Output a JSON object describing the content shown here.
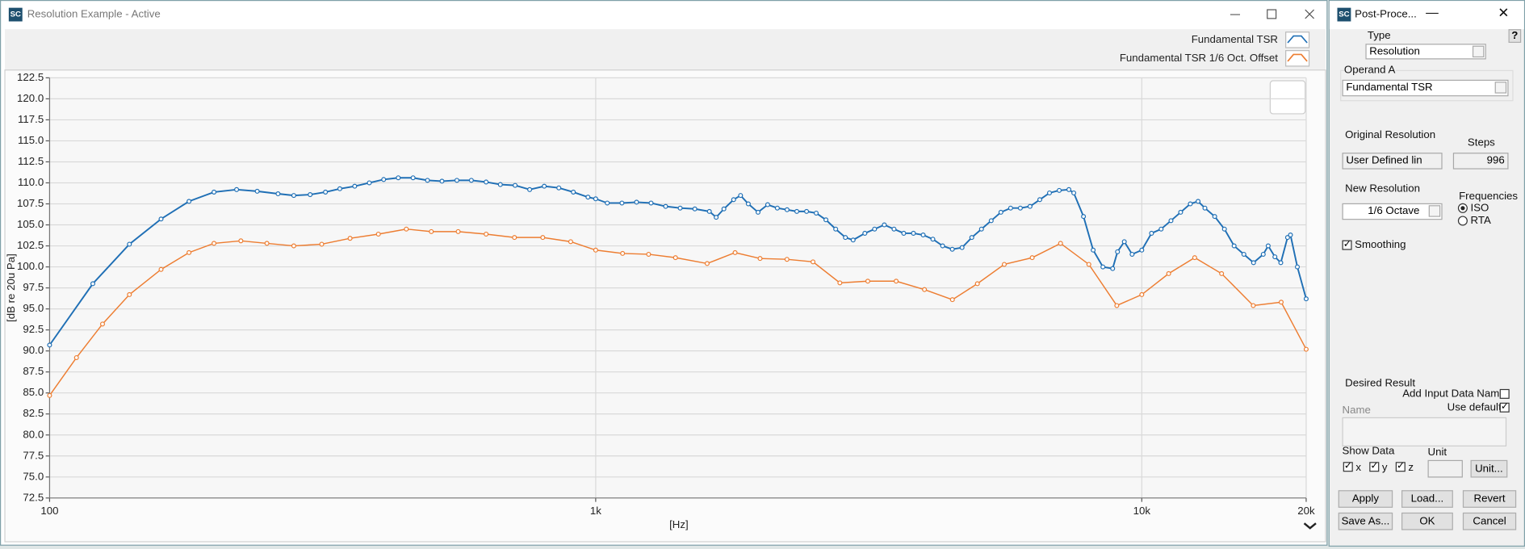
{
  "window": {
    "icon": "SC",
    "title": "Resolution Example - Active"
  },
  "chart_data": {
    "type": "line",
    "xscale": "log",
    "xlabel": "[Hz]",
    "ylabel": "[dB re 20u Pa]",
    "xlim": [
      100,
      20000
    ],
    "ylim": [
      72.5,
      122.5
    ],
    "xticks": [
      100,
      {
        "value": 1000,
        "label": "1k"
      },
      {
        "value": 10000,
        "label": "10k"
      },
      {
        "value": 20000,
        "label": "20k"
      }
    ],
    "yticks": [
      72.5,
      {
        "value": 75,
        "label": "75.0"
      },
      77.5,
      {
        "value": 80,
        "label": "80.0"
      },
      82.5,
      {
        "value": 85,
        "label": "85.0"
      },
      87.5,
      {
        "value": 90,
        "label": "90.0"
      },
      92.5,
      {
        "value": 95,
        "label": "95.0"
      },
      97.5,
      {
        "value": 100,
        "label": "100.0"
      },
      102.5,
      {
        "value": 105,
        "label": "105.0"
      },
      107.5,
      {
        "value": 110,
        "label": "110.0"
      },
      112.5,
      {
        "value": 115,
        "label": "115.0"
      },
      117.5,
      {
        "value": 120,
        "label": "120.0"
      },
      122.5
    ],
    "grid": true,
    "legend": "upper right",
    "series": [
      {
        "name": "Fundamental TSR",
        "color": "#1f6fb5",
        "x": [
          100,
          120,
          140,
          160,
          180,
          200,
          220,
          240,
          262,
          280,
          300,
          320,
          340,
          362,
          385,
          409,
          435,
          463,
          492,
          523,
          557,
          592,
          630,
          669,
          712,
          757,
          805,
          856,
          910,
          968,
          1000,
          1050,
          1117,
          1188,
          1263,
          1343,
          1428,
          1519,
          1615,
          1662,
          1717,
          1789,
          1842,
          1903,
          1983,
          2065,
          2151,
          2241,
          2335,
          2433,
          2534,
          2640,
          2751,
          2866,
          2961,
          3111,
          3241,
          3377,
          3518,
          3665,
          3818,
          3978,
          4144,
          4318,
          4498,
          4687,
          4883,
          5087,
          5300,
          5521,
          5752,
          5993,
          6243,
          6505,
          6776,
          7060,
          7354,
          7507,
          7821,
          8147,
          8488,
          8844,
          9027,
          9290,
          9600,
          10000,
          10420,
          10850,
          11310,
          11780,
          12270,
          12680,
          13050,
          13600,
          14170,
          14760,
          15380,
          16020,
          16690,
          17040,
          17530,
          17970,
          18490,
          18720,
          19270,
          20000
        ],
        "values": [
          90.7,
          98,
          102.7,
          105.7,
          107.8,
          108.9,
          109.2,
          109,
          108.7,
          108.5,
          108.6,
          108.9,
          109.3,
          109.6,
          110,
          110.4,
          110.6,
          110.6,
          110.3,
          110.2,
          110.3,
          110.3,
          110.1,
          109.8,
          109.7,
          109.2,
          109.6,
          109.4,
          108.9,
          108.3,
          108.1,
          107.6,
          107.6,
          107.7,
          107.6,
          107.2,
          107,
          106.9,
          106.6,
          105.9,
          106.9,
          108,
          108.5,
          107.5,
          106.5,
          107.4,
          107,
          106.8,
          106.6,
          106.6,
          106.4,
          105.6,
          104.5,
          103.5,
          103.2,
          104,
          104.5,
          105,
          104.5,
          104,
          104,
          103.8,
          103.3,
          102.5,
          102.1,
          102.3,
          103.5,
          104.5,
          105.5,
          106.5,
          107,
          107,
          107.2,
          108,
          108.8,
          109.1,
          109.2,
          108.8,
          106,
          102,
          100,
          99.8,
          101.8,
          103,
          101.5,
          102,
          104,
          104.5,
          105.5,
          106.5,
          107.5,
          107.8,
          107,
          106,
          104.5,
          102.5,
          101.5,
          100.5,
          101.5,
          102.5,
          101.2,
          100.5,
          103.5,
          103.8,
          100,
          96.2
        ]
      },
      {
        "name": "Fundamental TSR 1/6 Oct. Offset",
        "color": "#ed7d31",
        "x": [
          100,
          112,
          125,
          140,
          160,
          180,
          200,
          224,
          250,
          280,
          315,
          355,
          400,
          450,
          500,
          560,
          630,
          710,
          800,
          900,
          1000,
          1120,
          1250,
          1400,
          1600,
          1800,
          2000,
          2240,
          2500,
          2800,
          3150,
          3550,
          4000,
          4500,
          5000,
          5600,
          6300,
          7100,
          8000,
          9000,
          10000,
          11200,
          12500,
          14000,
          16000,
          18000,
          20000
        ],
        "values": [
          84.7,
          89.2,
          93.2,
          96.7,
          99.7,
          101.7,
          102.8,
          103.1,
          102.8,
          102.5,
          102.7,
          103.4,
          103.9,
          104.5,
          104.2,
          104.2,
          103.9,
          103.5,
          103.5,
          103,
          102,
          101.6,
          101.5,
          101.1,
          100.4,
          101.7,
          101,
          100.9,
          100.6,
          98.1,
          98.3,
          98.3,
          97.3,
          96.1,
          98,
          100.3,
          101.1,
          102.8,
          100.3,
          95.4,
          96.7,
          99.2,
          101.1,
          99.2,
          95.4,
          95.8,
          90.2
        ]
      }
    ]
  },
  "panel": {
    "icon": "SC",
    "title": "Post-Proce...",
    "help": "?",
    "type_label": "Type",
    "type_value": "Resolution",
    "operand_label": "Operand A",
    "operand_value": "Fundamental TSR",
    "orig_label": "Original Resolution",
    "steps_label": "Steps",
    "orig_value": "User Defined lin",
    "steps_value": "996",
    "new_label": "New Resolution",
    "new_value": "1/6 Octave",
    "freq_label": "Frequencies",
    "freq_options": [
      "ISO",
      "RTA"
    ],
    "smoothing": "Smoothing",
    "desired_label": "Desired Result",
    "add_input": "Add Input Data Name",
    "use_default": "Use default",
    "name_label": "Name",
    "show_data": "Show Data",
    "axes": [
      "x",
      "y",
      "z"
    ],
    "unit_label": "Unit",
    "unit_button": "Unit...",
    "buttons": [
      "Apply",
      "Load...",
      "Revert",
      "Save As...",
      "OK",
      "Cancel"
    ]
  }
}
